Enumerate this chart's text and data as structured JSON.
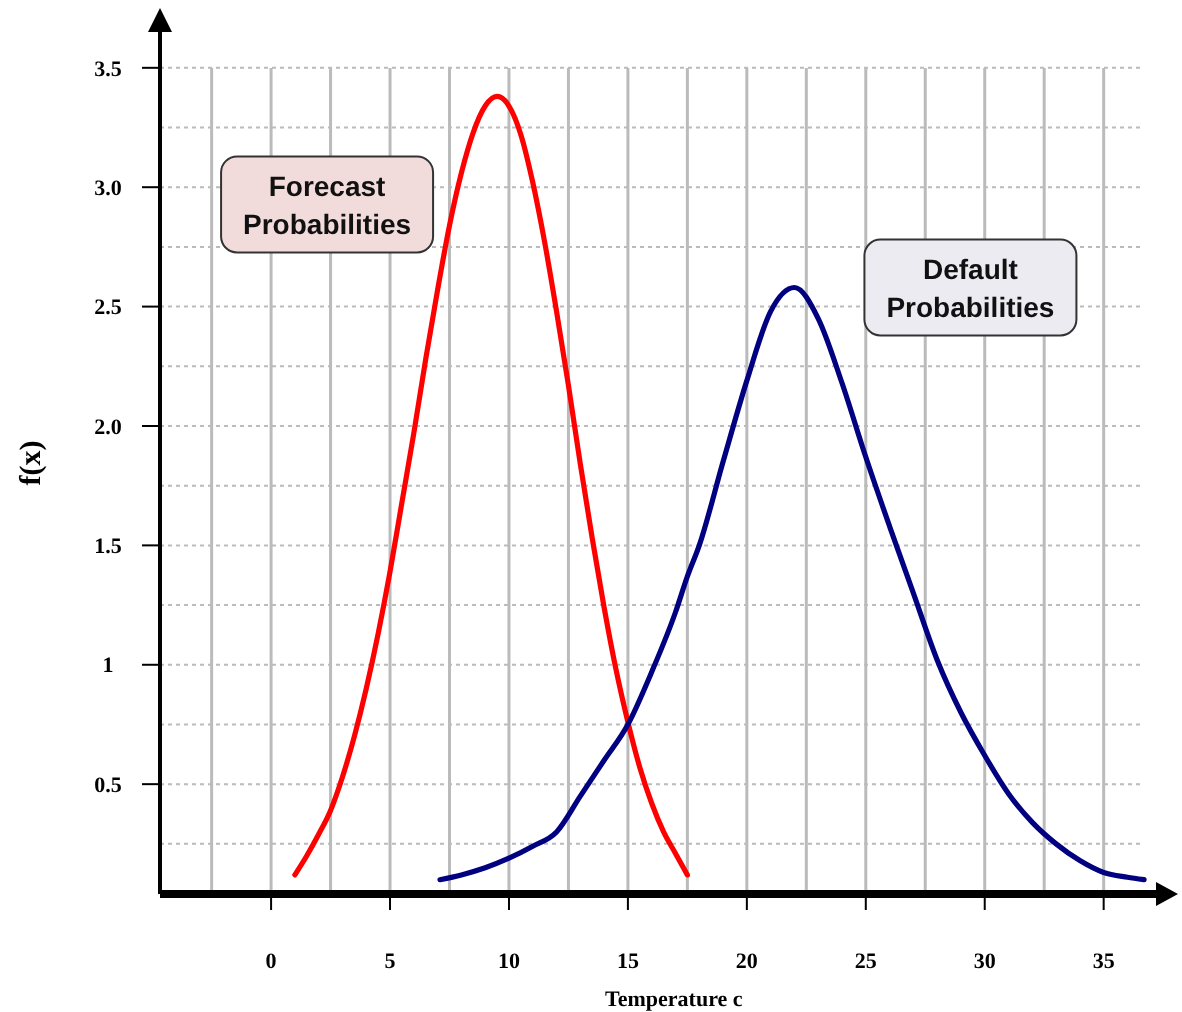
{
  "chart_data": {
    "type": "line",
    "xlabel": "Temperature c",
    "ylabel": "f(x)",
    "xlim": [
      -4.67,
      37.2
    ],
    "ylim": [
      0.04,
      3.65
    ],
    "xticks": [
      {
        "value": -2.5,
        "label": null
      },
      0,
      {
        "value": 2.5,
        "label": null
      },
      5,
      {
        "value": 7.5,
        "label": null
      },
      10,
      {
        "value": 12.5,
        "label": null
      },
      15,
      {
        "value": 17.5,
        "label": null
      },
      20,
      {
        "value": 22.5,
        "label": null
      },
      25,
      {
        "value": 27.5,
        "label": null
      },
      30,
      {
        "value": 32.5,
        "label": null
      },
      35
    ],
    "yticks": [
      {
        "value": 0.25,
        "label": null
      },
      0.5,
      {
        "value": 0.75,
        "label": null
      },
      1,
      {
        "value": 1.25,
        "label": null
      },
      1.5,
      {
        "value": 1.75,
        "label": null
      },
      {
        "value": 2,
        "label": "2.0"
      },
      {
        "value": 2.25,
        "label": null
      },
      2.5,
      {
        "value": 2.75,
        "label": null
      },
      {
        "value": 3,
        "label": "3.0"
      },
      {
        "value": 3.25,
        "label": null
      },
      3.5
    ],
    "grid": true,
    "marker": "none",
    "line_style": "solid",
    "series": [
      {
        "name": "Forecast Probabilities",
        "color": "#ff0000",
        "x": [
          1,
          1.5,
          2,
          2.5,
          3,
          3.5,
          4,
          4.5,
          5,
          5.5,
          6,
          6.5,
          7,
          7.5,
          8,
          8.5,
          9,
          9.5,
          10,
          10.5,
          11,
          11.5,
          12,
          12.5,
          13,
          13.5,
          14,
          14.5,
          15,
          15.5,
          16,
          16.5,
          17,
          17.5
        ],
        "values": [
          0.12,
          0.2,
          0.29,
          0.39,
          0.53,
          0.7,
          0.9,
          1.13,
          1.39,
          1.68,
          1.97,
          2.28,
          2.57,
          2.84,
          3.06,
          3.23,
          3.34,
          3.38,
          3.34,
          3.22,
          3.02,
          2.77,
          2.48,
          2.17,
          1.84,
          1.53,
          1.24,
          0.98,
          0.76,
          0.57,
          0.42,
          0.3,
          0.21,
          0.12
        ]
      },
      {
        "name": "Default Probabilities",
        "color": "#000080",
        "x": [
          7.1,
          8,
          9,
          10,
          11,
          12,
          13,
          14,
          15,
          16,
          17,
          17.5,
          18,
          19,
          20,
          21,
          22,
          23,
          24,
          25,
          26,
          27,
          28,
          29,
          30,
          31,
          32,
          33,
          34,
          35,
          36,
          36.7
        ],
        "values": [
          0.1,
          0.12,
          0.15,
          0.19,
          0.24,
          0.3,
          0.45,
          0.6,
          0.75,
          0.97,
          1.22,
          1.37,
          1.5,
          1.85,
          2.19,
          2.48,
          2.58,
          2.45,
          2.18,
          1.87,
          1.58,
          1.3,
          1.02,
          0.8,
          0.62,
          0.46,
          0.34,
          0.25,
          0.18,
          0.13,
          0.11,
          0.1
        ]
      }
    ]
  }
}
